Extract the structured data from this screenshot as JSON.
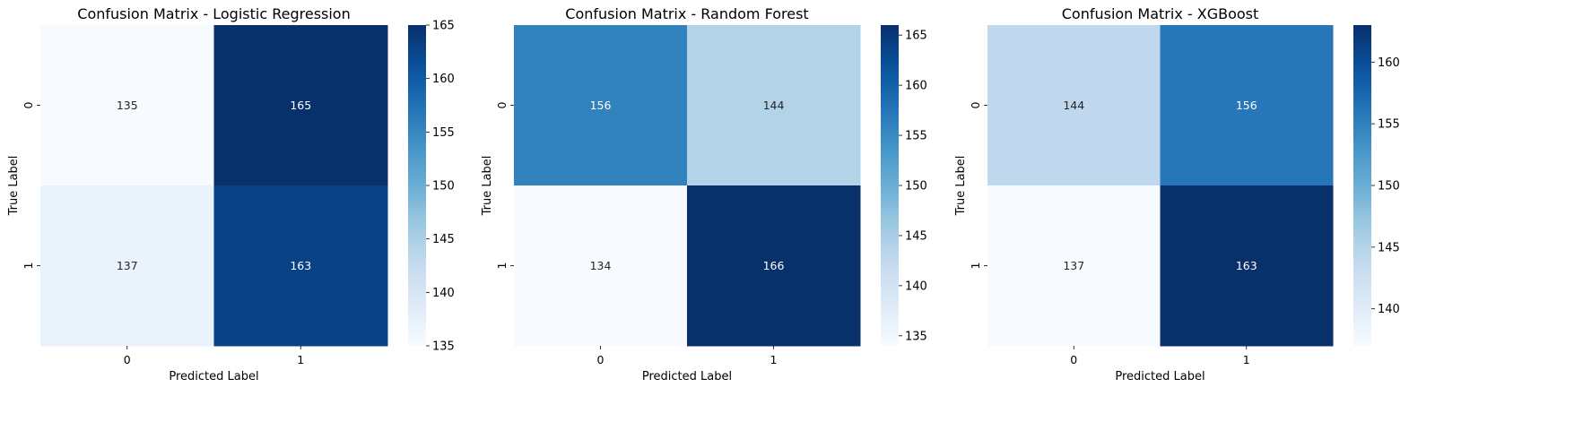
{
  "chart_data": [
    {
      "type": "heatmap",
      "title": "Confusion Matrix - Logistic Regression",
      "xlabel": "Predicted Label",
      "ylabel": "True Label",
      "x_categories": [
        "0",
        "1"
      ],
      "y_categories": [
        "0",
        "1"
      ],
      "values": [
        [
          135,
          165
        ],
        [
          137,
          163
        ]
      ],
      "colormap": "Blues",
      "vmin": 135,
      "vmax": 165,
      "colorbar_ticks": [
        135,
        140,
        145,
        150,
        155,
        160,
        165
      ]
    },
    {
      "type": "heatmap",
      "title": "Confusion Matrix - Random Forest",
      "xlabel": "Predicted Label",
      "ylabel": "True Label",
      "x_categories": [
        "0",
        "1"
      ],
      "y_categories": [
        "0",
        "1"
      ],
      "values": [
        [
          156,
          144
        ],
        [
          134,
          166
        ]
      ],
      "colormap": "Blues",
      "vmin": 134,
      "vmax": 166,
      "colorbar_ticks": [
        135,
        140,
        145,
        150,
        155,
        160,
        165
      ]
    },
    {
      "type": "heatmap",
      "title": "Confusion Matrix - XGBoost",
      "xlabel": "Predicted Label",
      "ylabel": "True Label",
      "x_categories": [
        "0",
        "1"
      ],
      "y_categories": [
        "0",
        "1"
      ],
      "values": [
        [
          144,
          156
        ],
        [
          137,
          163
        ]
      ],
      "colormap": "Blues",
      "vmin": 137,
      "vmax": 163,
      "colorbar_ticks": [
        140,
        145,
        150,
        155,
        160
      ]
    }
  ]
}
